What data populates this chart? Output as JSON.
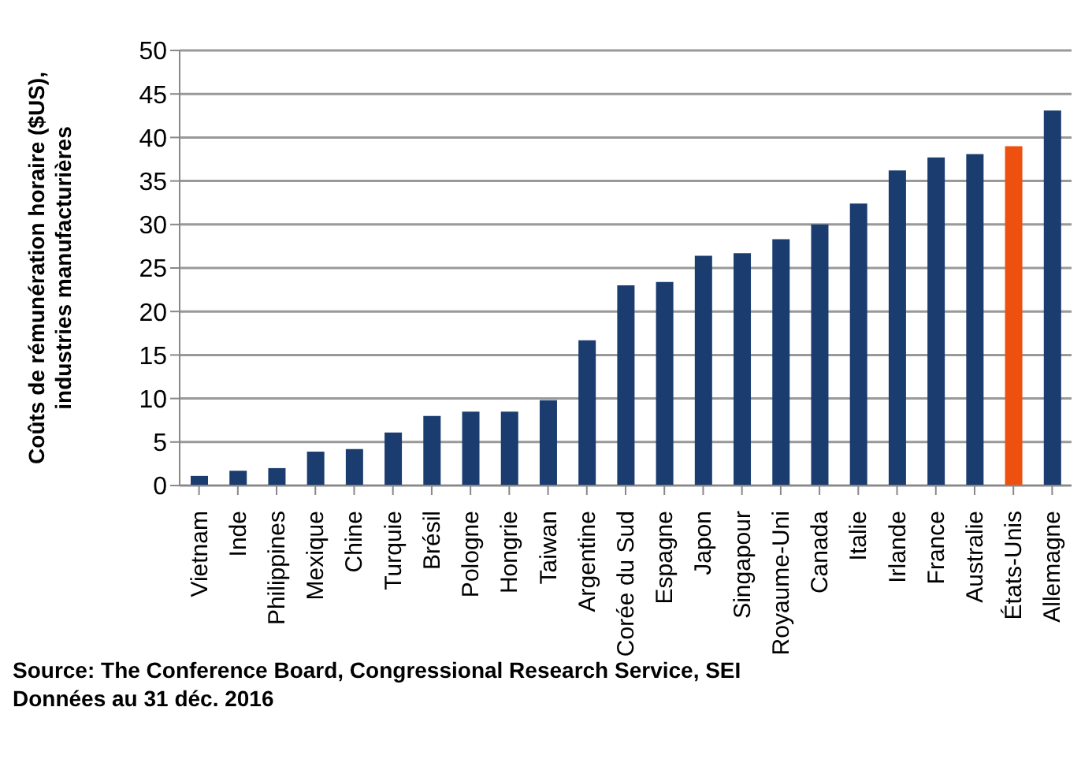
{
  "chart_data": {
    "type": "bar",
    "ylabel": "Coûts de rémunération horaire ($US), industries manufacturières",
    "categories": [
      "Vietnam",
      "Inde",
      "Philippines",
      "Mexique",
      "Chine",
      "Turquie",
      "Brésil",
      "Pologne",
      "Hongrie",
      "Taiwan",
      "Argentine",
      "Corée du Sud",
      "Espagne",
      "Japon",
      "Singapour",
      "Royaume-Uni",
      "Canada",
      "Italie",
      "Irlande",
      "France",
      "Australie",
      "États-Unis",
      "Allemagne"
    ],
    "values": [
      1.1,
      1.7,
      2.0,
      3.9,
      4.2,
      6.1,
      8.0,
      8.5,
      8.5,
      9.8,
      16.7,
      23.0,
      23.4,
      26.4,
      26.7,
      28.3,
      30.0,
      32.4,
      36.2,
      37.7,
      38.1,
      39.0,
      43.1
    ],
    "colors": [
      "#1a3c6e",
      "#1a3c6e",
      "#1a3c6e",
      "#1a3c6e",
      "#1a3c6e",
      "#1a3c6e",
      "#1a3c6e",
      "#1a3c6e",
      "#1a3c6e",
      "#1a3c6e",
      "#1a3c6e",
      "#1a3c6e",
      "#1a3c6e",
      "#1a3c6e",
      "#1a3c6e",
      "#1a3c6e",
      "#1a3c6e",
      "#1a3c6e",
      "#1a3c6e",
      "#1a3c6e",
      "#1a3c6e",
      "#ee500f",
      "#1a3c6e"
    ],
    "ylim": [
      0,
      50
    ],
    "yticks": [
      0,
      5,
      10,
      15,
      20,
      25,
      30,
      35,
      40,
      45,
      50
    ],
    "grid": "y",
    "annotations": [
      "Source: The Conference Board, Congressional Research Service, SEI",
      "Données au 31 déc. 2016"
    ]
  }
}
